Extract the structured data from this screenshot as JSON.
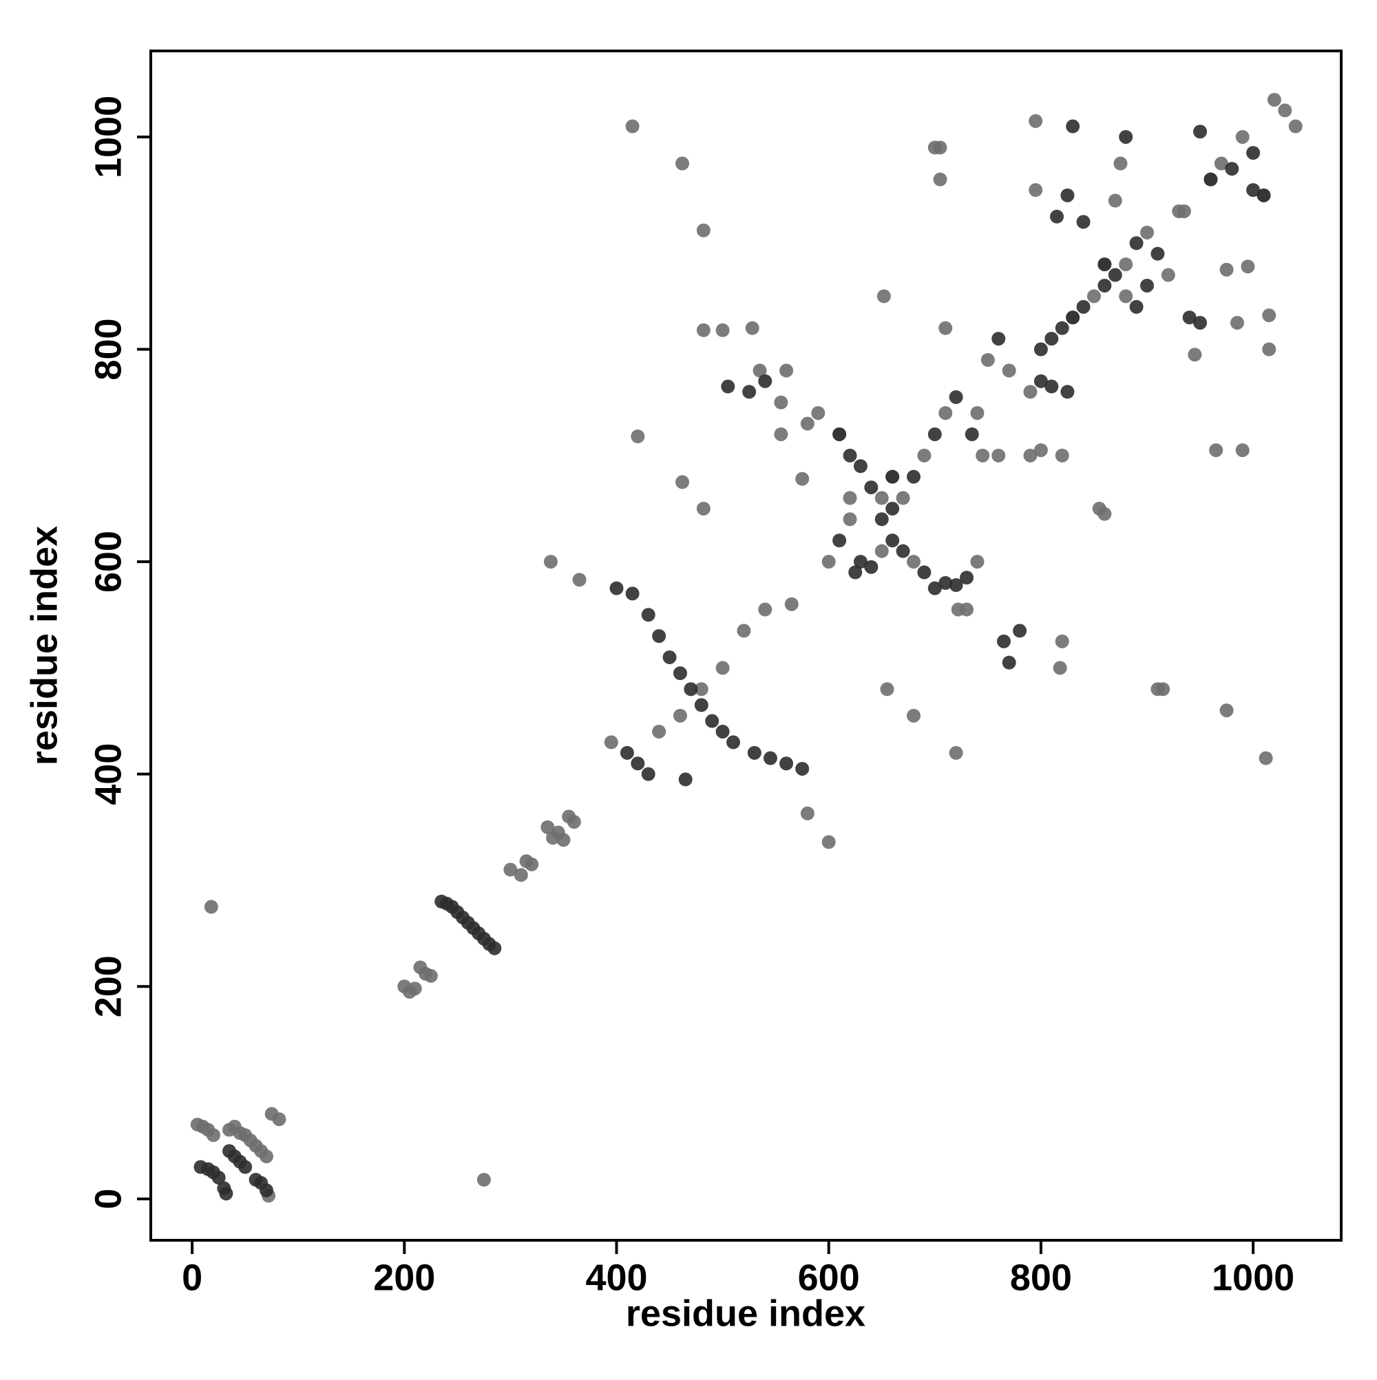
{
  "chart_data": {
    "type": "scatter",
    "x_label": "residue index",
    "y_label": "residue index",
    "xlim": [
      -39,
      1083
    ],
    "ylim": [
      -39,
      1081
    ],
    "xticks": [
      0,
      200,
      400,
      600,
      800,
      1000
    ],
    "yticks": [
      0,
      200,
      400,
      600,
      800,
      1000
    ],
    "series": [
      {
        "color": "#6e6e6e",
        "x": [
          5,
          10,
          15,
          20,
          35,
          40,
          45,
          50,
          55,
          60,
          65,
          70,
          72,
          75,
          82,
          18,
          275,
          200,
          205,
          210,
          215,
          220,
          225,
          300,
          310,
          315,
          320,
          335,
          340,
          345,
          350,
          355,
          360,
          338,
          365,
          395,
          440,
          460,
          480,
          500,
          520,
          540,
          565,
          462,
          482,
          420,
          415,
          462,
          482,
          482,
          500,
          528,
          535,
          555,
          560,
          555,
          575,
          580,
          600,
          580,
          590,
          610,
          650,
          670,
          690,
          710,
          600,
          620,
          650,
          680,
          740,
          620,
          660,
          652,
          655,
          680,
          700,
          705,
          705,
          710,
          720,
          722,
          730,
          740,
          745,
          760,
          790,
          800,
          820,
          820,
          818,
          750,
          770,
          790,
          830,
          860,
          880,
          900,
          850,
          880,
          870,
          875,
          795,
          795,
          855,
          860,
          920,
          930,
          960,
          970,
          990,
          1010,
          1020,
          1030,
          1040,
          1015,
          1015,
          985,
          975,
          995,
          965,
          990,
          975,
          910,
          915,
          1012,
          945,
          935
        ],
        "values": [
          70,
          68,
          65,
          60,
          65,
          68,
          62,
          60,
          55,
          50,
          45,
          40,
          3,
          80,
          75,
          275,
          18,
          200,
          195,
          198,
          218,
          212,
          210,
          310,
          305,
          318,
          315,
          350,
          340,
          345,
          338,
          360,
          355,
          600,
          583,
          430,
          440,
          455,
          480,
          500,
          535,
          555,
          560,
          675,
          650,
          718,
          1010,
          975,
          912,
          818,
          818,
          820,
          780,
          750,
          780,
          720,
          678,
          363,
          336,
          730,
          740,
          720,
          660,
          660,
          700,
          740,
          600,
          640,
          610,
          600,
          600,
          660,
          680,
          850,
          480,
          455,
          990,
          990,
          960,
          820,
          420,
          555,
          555,
          740,
          700,
          700,
          700,
          705,
          700,
          525,
          500,
          790,
          780,
          760,
          830,
          880,
          880,
          910,
          850,
          850,
          940,
          975,
          1015,
          950,
          650,
          645,
          870,
          930,
          960,
          975,
          1000,
          945,
          1035,
          1025,
          1010,
          800,
          832,
          825,
          875,
          878,
          705,
          705,
          460,
          480,
          480,
          415,
          795,
          930
        ]
      },
      {
        "color": "#2e2e2e",
        "x": [
          8,
          15,
          20,
          25,
          30,
          32,
          35,
          40,
          45,
          50,
          60,
          65,
          70,
          235,
          240,
          245,
          250,
          255,
          260,
          265,
          270,
          275,
          280,
          285,
          400,
          415,
          430,
          440,
          450,
          460,
          470,
          480,
          490,
          500,
          510,
          530,
          545,
          560,
          575,
          410,
          420,
          430,
          465,
          505,
          525,
          540,
          610,
          620,
          630,
          640,
          660,
          680,
          700,
          720,
          610,
          630,
          640,
          660,
          670,
          690,
          700,
          710,
          720,
          730,
          625,
          650,
          660,
          735,
          765,
          770,
          780,
          760,
          800,
          810,
          820,
          830,
          840,
          800,
          810,
          825,
          815,
          825,
          840,
          860,
          870,
          890,
          910,
          940,
          950,
          860,
          890,
          900,
          880,
          830,
          950,
          980,
          1000,
          960,
          1000,
          1010
        ],
        "values": [
          30,
          28,
          25,
          20,
          10,
          5,
          45,
          40,
          35,
          30,
          18,
          15,
          8,
          280,
          278,
          275,
          270,
          265,
          260,
          255,
          250,
          245,
          240,
          236,
          575,
          570,
          550,
          530,
          510,
          495,
          480,
          465,
          450,
          440,
          430,
          420,
          415,
          410,
          405,
          420,
          410,
          400,
          395,
          765,
          760,
          770,
          720,
          700,
          690,
          670,
          650,
          680,
          720,
          755,
          620,
          600,
          595,
          620,
          610,
          590,
          575,
          580,
          578,
          585,
          590,
          640,
          680,
          720,
          525,
          505,
          535,
          810,
          800,
          810,
          820,
          830,
          840,
          770,
          765,
          760,
          925,
          945,
          920,
          880,
          870,
          900,
          890,
          830,
          825,
          860,
          840,
          860,
          1000,
          1010,
          1005,
          970,
          950,
          960,
          985,
          945
        ]
      }
    ]
  }
}
